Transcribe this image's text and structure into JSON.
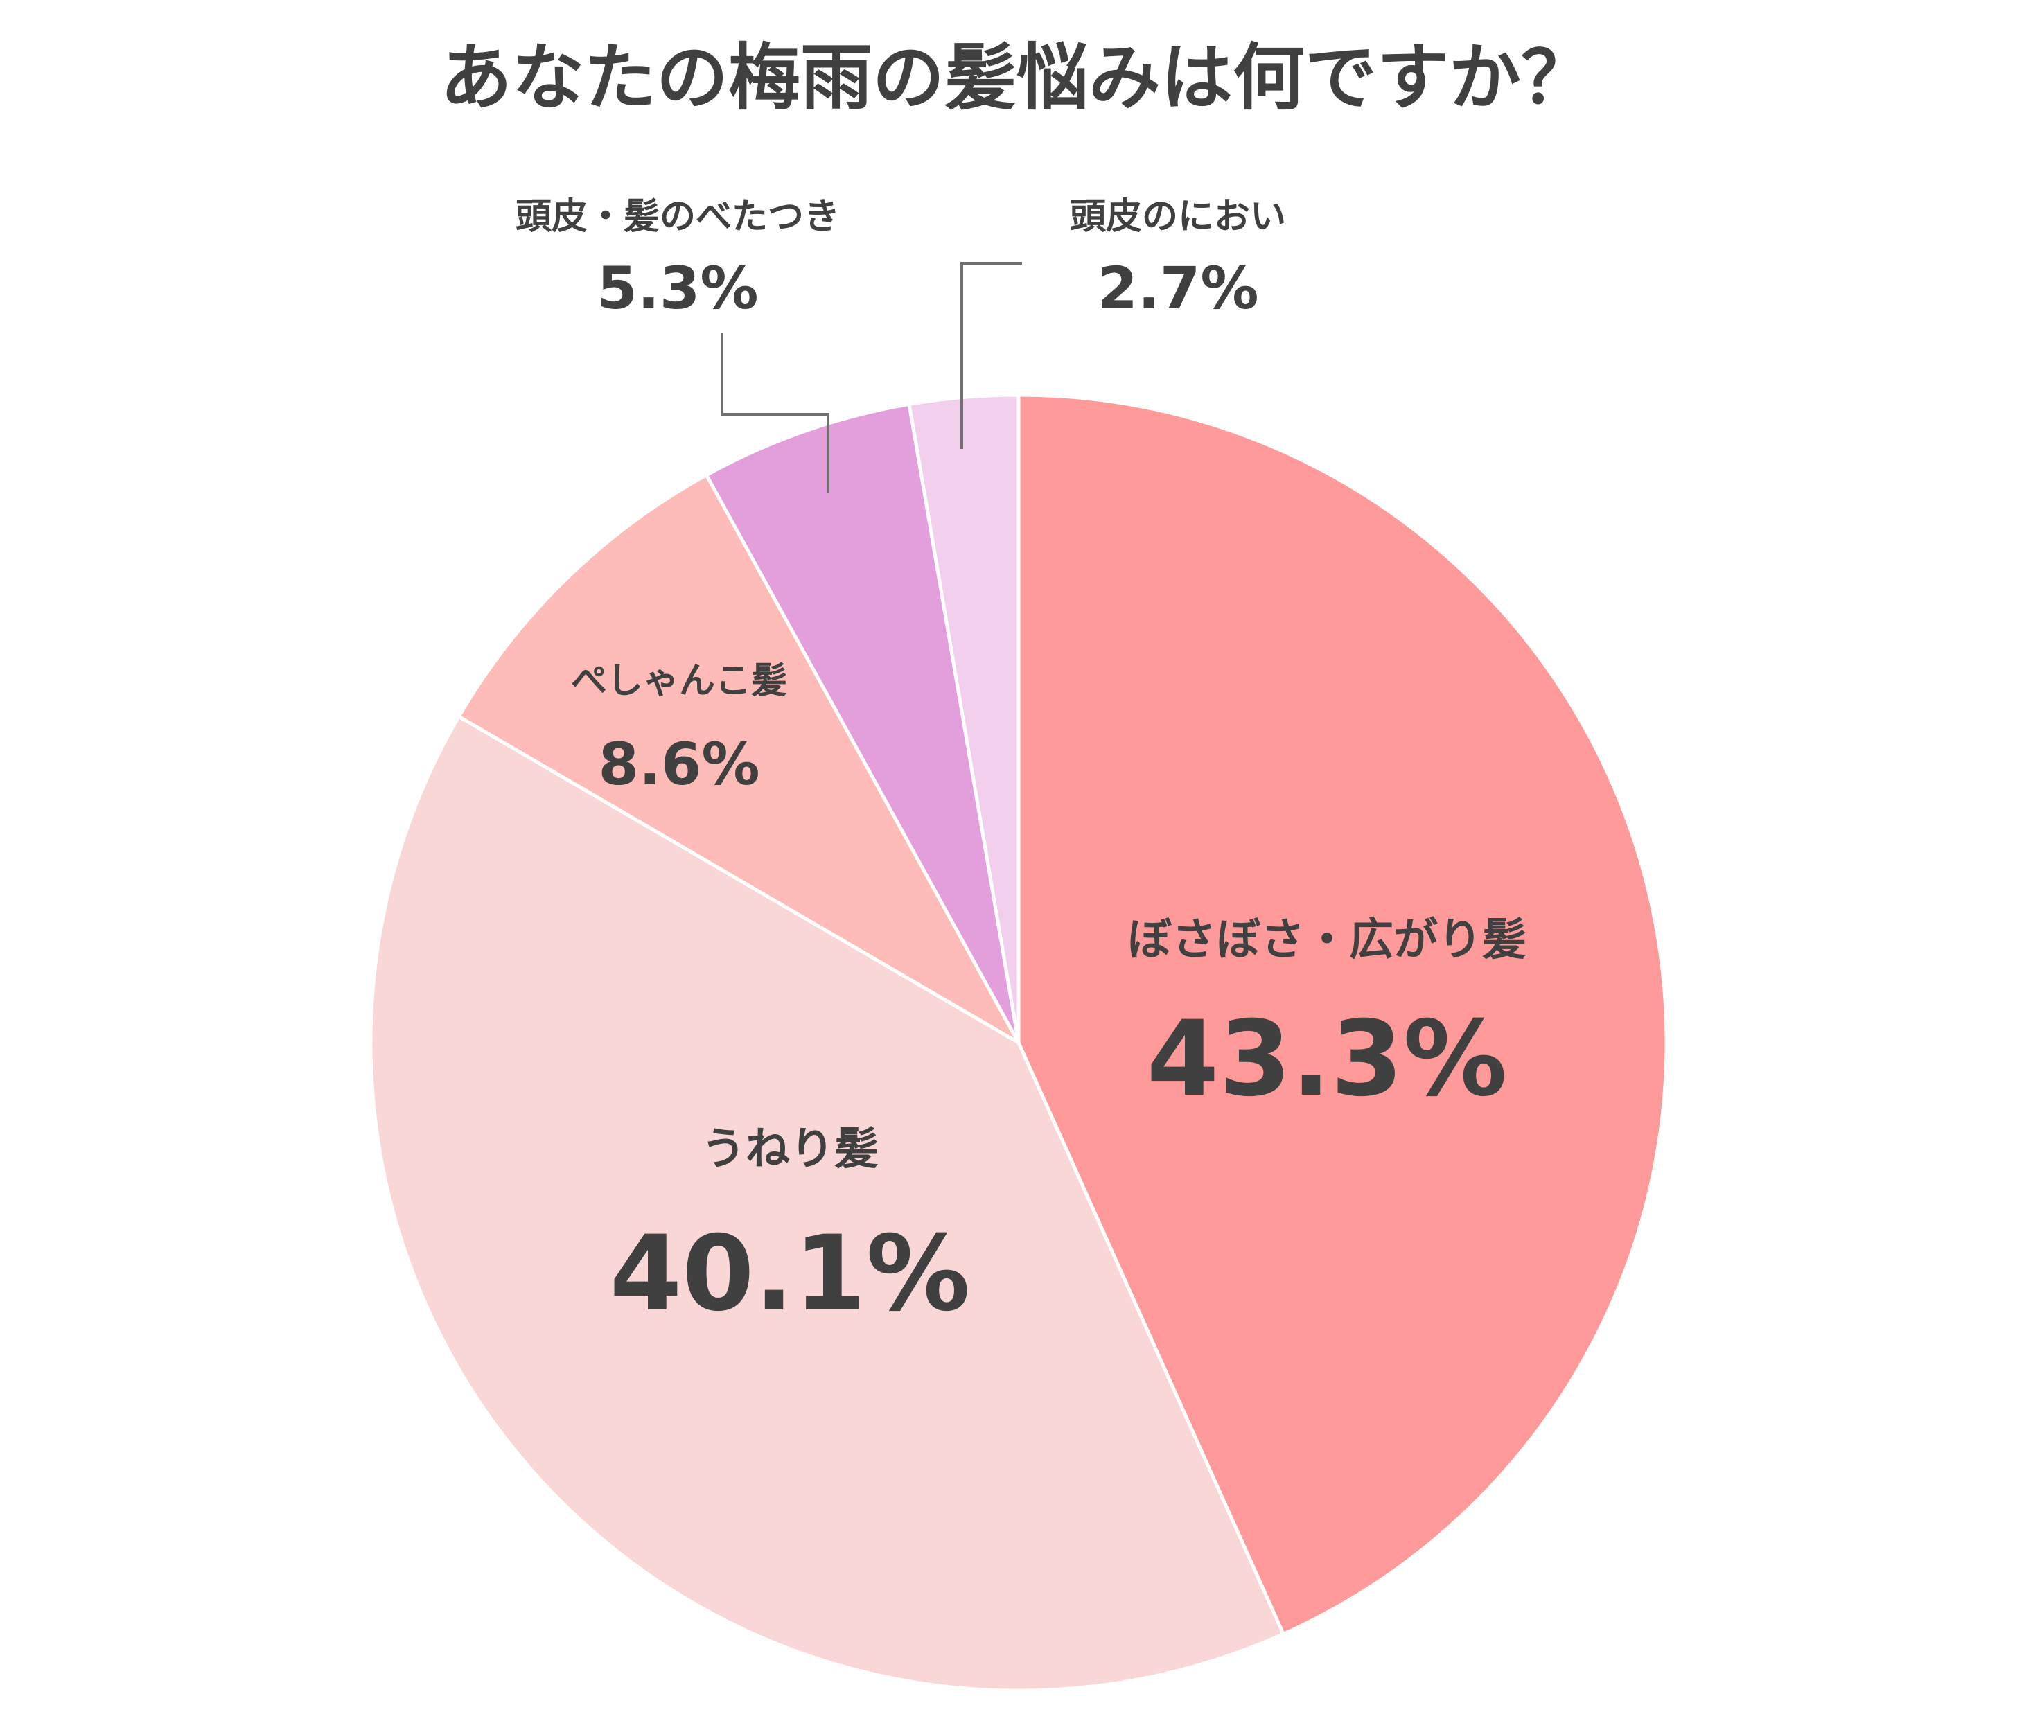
{
  "chart_data": {
    "type": "pie",
    "title": "あなたの梅雨の髪悩みは何ですか？",
    "slices": [
      {
        "label": "ぼさぼさ・広がり髪",
        "value": 43.3,
        "value_text": "43.3%",
        "color": "#FF9A9A"
      },
      {
        "label": "うねり髪",
        "value": 40.1,
        "value_text": "40.1%",
        "color": "#F9D7D6"
      },
      {
        "label": "ぺしゃんこ髪",
        "value": 8.6,
        "value_text": "8.6%",
        "color": "#FEBCB8"
      },
      {
        "label": "頭皮・髪のべたつき",
        "value": 5.3,
        "value_text": "5.3%",
        "color": "#E29FDC"
      },
      {
        "label": "頭皮のにおい",
        "value": 2.7,
        "value_text": "2.7%",
        "color": "#F2CFED"
      }
    ],
    "start_angle": "12 o'clock",
    "direction": "clockwise",
    "slice_border_color": "#FFFFFF",
    "leader_line_color": "#707070"
  }
}
